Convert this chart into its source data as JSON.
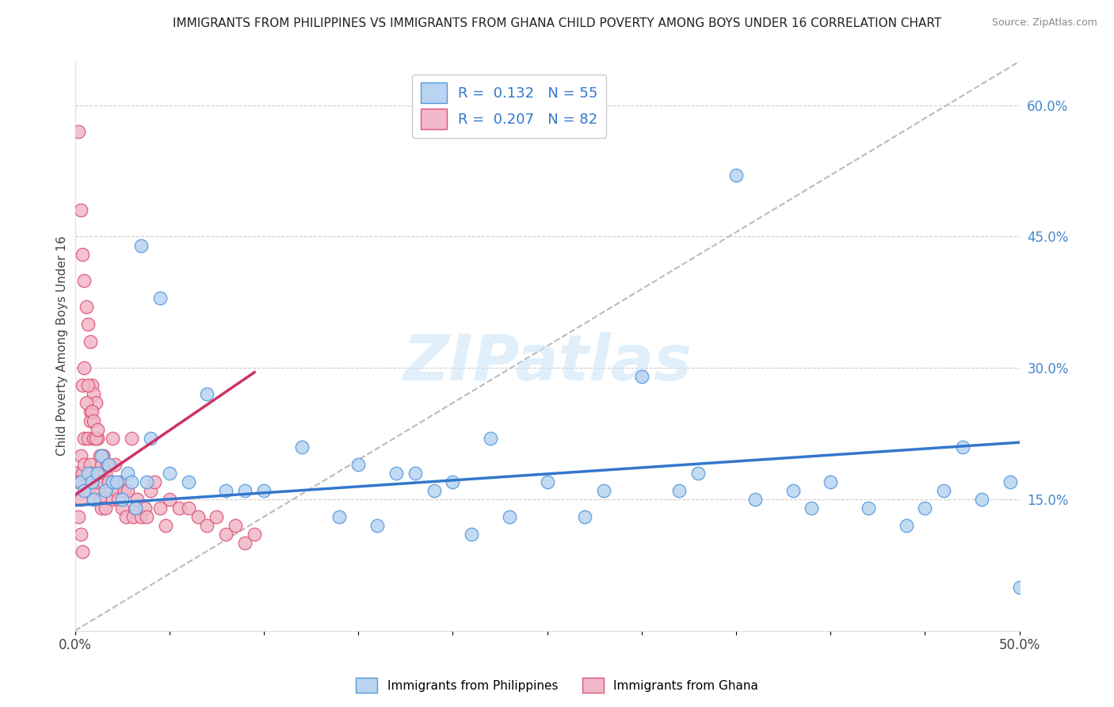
{
  "title": "IMMIGRANTS FROM PHILIPPINES VS IMMIGRANTS FROM GHANA CHILD POVERTY AMONG BOYS UNDER 16 CORRELATION CHART",
  "source": "Source: ZipAtlas.com",
  "ylabel": "Child Poverty Among Boys Under 16",
  "legend_label_blue": "Immigrants from Philippines",
  "legend_label_pink": "Immigrants from Ghana",
  "R_blue": 0.132,
  "N_blue": 55,
  "R_pink": 0.207,
  "N_pink": 82,
  "color_blue": "#b8d4f0",
  "color_pink": "#f0b8c8",
  "edge_blue": "#5599dd",
  "edge_pink": "#dd5577",
  "line_color_blue": "#3377cc",
  "line_color_pink": "#cc3366",
  "xlim": [
    0.0,
    0.5
  ],
  "ylim": [
    0.0,
    0.65
  ],
  "xticks": [
    0.0,
    0.05,
    0.1,
    0.15,
    0.2,
    0.25,
    0.3,
    0.35,
    0.4,
    0.45,
    0.5
  ],
  "xtick_labels": [
    "0.0%",
    "",
    "",
    "",
    "",
    "",
    "",
    "",
    "",
    "",
    "50.0%"
  ],
  "yticks_right": [
    0.15,
    0.3,
    0.45,
    0.6
  ],
  "watermark": "ZIPatlas",
  "philippines_x": [
    0.003,
    0.005,
    0.007,
    0.009,
    0.01,
    0.012,
    0.014,
    0.016,
    0.018,
    0.02,
    0.022,
    0.025,
    0.028,
    0.03,
    0.032,
    0.035,
    0.038,
    0.04,
    0.045,
    0.05,
    0.06,
    0.07,
    0.08,
    0.09,
    0.1,
    0.12,
    0.14,
    0.15,
    0.16,
    0.17,
    0.18,
    0.19,
    0.2,
    0.21,
    0.22,
    0.23,
    0.25,
    0.27,
    0.28,
    0.3,
    0.32,
    0.33,
    0.35,
    0.36,
    0.38,
    0.39,
    0.4,
    0.42,
    0.44,
    0.45,
    0.46,
    0.47,
    0.48,
    0.495,
    0.5
  ],
  "philippines_y": [
    0.17,
    0.16,
    0.18,
    0.17,
    0.15,
    0.18,
    0.2,
    0.16,
    0.19,
    0.17,
    0.17,
    0.15,
    0.18,
    0.17,
    0.14,
    0.44,
    0.17,
    0.22,
    0.38,
    0.18,
    0.17,
    0.27,
    0.16,
    0.16,
    0.16,
    0.21,
    0.13,
    0.19,
    0.12,
    0.18,
    0.18,
    0.16,
    0.17,
    0.11,
    0.22,
    0.13,
    0.17,
    0.13,
    0.16,
    0.29,
    0.16,
    0.18,
    0.52,
    0.15,
    0.16,
    0.14,
    0.17,
    0.14,
    0.12,
    0.14,
    0.16,
    0.21,
    0.15,
    0.17,
    0.05
  ],
  "ghana_x": [
    0.001,
    0.002,
    0.002,
    0.003,
    0.003,
    0.003,
    0.004,
    0.004,
    0.005,
    0.005,
    0.005,
    0.006,
    0.006,
    0.007,
    0.007,
    0.007,
    0.008,
    0.008,
    0.008,
    0.009,
    0.009,
    0.01,
    0.01,
    0.01,
    0.011,
    0.011,
    0.012,
    0.012,
    0.013,
    0.013,
    0.014,
    0.014,
    0.015,
    0.015,
    0.016,
    0.016,
    0.017,
    0.018,
    0.019,
    0.02,
    0.02,
    0.021,
    0.022,
    0.023,
    0.024,
    0.025,
    0.026,
    0.027,
    0.028,
    0.03,
    0.031,
    0.032,
    0.033,
    0.035,
    0.037,
    0.038,
    0.04,
    0.042,
    0.045,
    0.048,
    0.05,
    0.055,
    0.06,
    0.065,
    0.07,
    0.075,
    0.08,
    0.085,
    0.09,
    0.095,
    0.004,
    0.005,
    0.006,
    0.007,
    0.008,
    0.009,
    0.01,
    0.011,
    0.012,
    0.015,
    0.002,
    0.003,
    0.004
  ],
  "ghana_y": [
    0.18,
    0.57,
    0.17,
    0.48,
    0.2,
    0.15,
    0.43,
    0.18,
    0.4,
    0.22,
    0.19,
    0.37,
    0.16,
    0.35,
    0.22,
    0.16,
    0.33,
    0.25,
    0.19,
    0.28,
    0.18,
    0.27,
    0.22,
    0.17,
    0.26,
    0.16,
    0.22,
    0.17,
    0.2,
    0.15,
    0.19,
    0.14,
    0.2,
    0.17,
    0.18,
    0.14,
    0.19,
    0.17,
    0.16,
    0.22,
    0.15,
    0.19,
    0.16,
    0.15,
    0.17,
    0.14,
    0.16,
    0.13,
    0.16,
    0.22,
    0.13,
    0.14,
    0.15,
    0.13,
    0.14,
    0.13,
    0.16,
    0.17,
    0.14,
    0.12,
    0.15,
    0.14,
    0.14,
    0.13,
    0.12,
    0.13,
    0.11,
    0.12,
    0.1,
    0.11,
    0.28,
    0.3,
    0.26,
    0.28,
    0.24,
    0.25,
    0.24,
    0.22,
    0.23,
    0.2,
    0.13,
    0.11,
    0.09
  ],
  "blue_line_x": [
    0.0,
    0.5
  ],
  "blue_line_y": [
    0.143,
    0.215
  ],
  "pink_line_x": [
    0.0,
    0.095
  ],
  "pink_line_y": [
    0.155,
    0.295
  ],
  "diag_line_x": [
    0.0,
    0.5
  ],
  "diag_line_y": [
    0.0,
    0.65
  ]
}
